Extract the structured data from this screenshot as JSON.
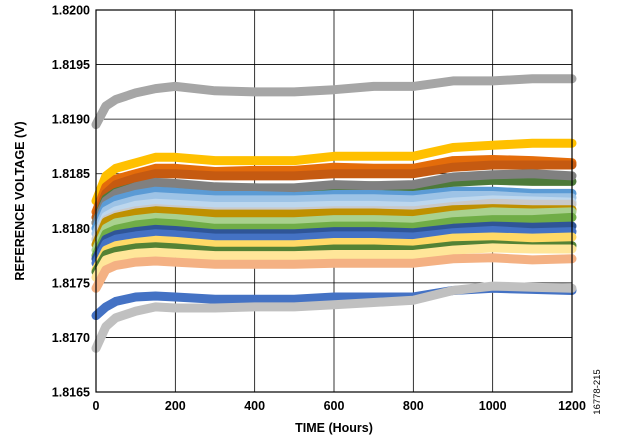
{
  "chart_data": {
    "type": "line",
    "title": "",
    "xlabel": "TIME (Hours)",
    "ylabel": "REFERENCE VOLTAGE (V)",
    "xlim": [
      0,
      1200
    ],
    "ylim": [
      1.8165,
      1.82
    ],
    "x_ticks": [
      "0",
      "200",
      "400",
      "600",
      "800",
      "1000",
      "1200"
    ],
    "y_ticks": [
      "1.8165",
      "1.8170",
      "1.8175",
      "1.8180",
      "1.8185",
      "1.8190",
      "1.8195",
      "1.8200"
    ],
    "grid": true,
    "legend": "none",
    "x": [
      0,
      25,
      50,
      100,
      150,
      200,
      300,
      400,
      500,
      600,
      700,
      800,
      900,
      1000,
      1100,
      1200
    ],
    "series": [
      {
        "color": "#A6A6A6",
        "values": [
          1.81895,
          1.81912,
          1.81918,
          1.81924,
          1.81928,
          1.8193,
          1.81926,
          1.81925,
          1.81925,
          1.81927,
          1.8193,
          1.8193,
          1.81935,
          1.81935,
          1.81937,
          1.81937
        ]
      },
      {
        "color": "#FFC000",
        "values": [
          1.81825,
          1.81848,
          1.81855,
          1.8186,
          1.81865,
          1.81865,
          1.81862,
          1.81862,
          1.81862,
          1.81866,
          1.81866,
          1.81866,
          1.81874,
          1.81876,
          1.81878,
          1.81878
        ]
      },
      {
        "color": "#E46C0A",
        "values": [
          1.81815,
          1.81838,
          1.81845,
          1.8185,
          1.81855,
          1.81855,
          1.81852,
          1.81853,
          1.81853,
          1.81856,
          1.81855,
          1.81855,
          1.81862,
          1.81863,
          1.81862,
          1.8186
        ]
      },
      {
        "color": "#C55A11",
        "values": [
          1.8181,
          1.81832,
          1.8184,
          1.81846,
          1.8185,
          1.8185,
          1.81848,
          1.81848,
          1.81848,
          1.8185,
          1.8185,
          1.8185,
          1.81856,
          1.81858,
          1.81858,
          1.81858
        ]
      },
      {
        "color": "#4D7A3A",
        "values": [
          1.81805,
          1.81827,
          1.81833,
          1.81838,
          1.81841,
          1.8184,
          1.81837,
          1.81837,
          1.81836,
          1.81838,
          1.81839,
          1.81838,
          1.81842,
          1.81844,
          1.81843,
          1.81843
        ]
      },
      {
        "color": "#808080",
        "values": [
          1.81805,
          1.81825,
          1.81832,
          1.81838,
          1.81842,
          1.81841,
          1.81838,
          1.81837,
          1.81837,
          1.8184,
          1.81839,
          1.8184,
          1.81847,
          1.81849,
          1.8185,
          1.81848
        ]
      },
      {
        "color": "#5B9BD5",
        "values": [
          1.818,
          1.81821,
          1.81826,
          1.81831,
          1.81834,
          1.81833,
          1.8183,
          1.8183,
          1.81829,
          1.81831,
          1.81831,
          1.8183,
          1.81834,
          1.81834,
          1.81832,
          1.81832
        ]
      },
      {
        "color": "#9DC3E6",
        "values": [
          1.81795,
          1.81816,
          1.81821,
          1.81826,
          1.81829,
          1.81828,
          1.81826,
          1.81826,
          1.81826,
          1.81827,
          1.81827,
          1.81826,
          1.8183,
          1.8183,
          1.81828,
          1.81828
        ]
      },
      {
        "color": "#BDD7EE",
        "values": [
          1.8179,
          1.81811,
          1.81816,
          1.81821,
          1.81823,
          1.81822,
          1.8182,
          1.8182,
          1.8182,
          1.81821,
          1.81821,
          1.8182,
          1.81824,
          1.81826,
          1.81825,
          1.81824
        ]
      },
      {
        "color": "#C9C9C9",
        "values": [
          1.8179,
          1.81808,
          1.81812,
          1.81816,
          1.81818,
          1.81817,
          1.81815,
          1.81815,
          1.81815,
          1.81816,
          1.81816,
          1.81816,
          1.8182,
          1.81823,
          1.81822,
          1.81822
        ]
      },
      {
        "color": "#BF9000",
        "values": [
          1.81785,
          1.81806,
          1.8181,
          1.81814,
          1.81816,
          1.81815,
          1.81813,
          1.81813,
          1.81813,
          1.81814,
          1.81814,
          1.81813,
          1.81817,
          1.81818,
          1.81817,
          1.81817
        ]
      },
      {
        "color": "#A9D18E",
        "values": [
          1.8178,
          1.818,
          1.81805,
          1.81808,
          1.8181,
          1.81809,
          1.81806,
          1.81806,
          1.81806,
          1.81808,
          1.81808,
          1.81807,
          1.81812,
          1.81815,
          1.81814,
          1.81815
        ]
      },
      {
        "color": "#70AD47",
        "values": [
          1.81775,
          1.81795,
          1.81799,
          1.81803,
          1.81805,
          1.81804,
          1.818,
          1.818,
          1.818,
          1.81802,
          1.81802,
          1.81801,
          1.81806,
          1.81808,
          1.81808,
          1.8181
        ]
      },
      {
        "color": "#2F5597",
        "values": [
          1.81772,
          1.8179,
          1.81794,
          1.81797,
          1.81799,
          1.81798,
          1.81795,
          1.81795,
          1.81795,
          1.81797,
          1.81797,
          1.81796,
          1.818,
          1.81802,
          1.81801,
          1.81802
        ]
      },
      {
        "color": "#4472C4",
        "values": [
          1.81768,
          1.81786,
          1.8179,
          1.81793,
          1.81795,
          1.81794,
          1.81791,
          1.81791,
          1.81791,
          1.81793,
          1.81793,
          1.81792,
          1.81796,
          1.81798,
          1.81796,
          1.81797
        ]
      },
      {
        "color": "#FFD966",
        "values": [
          1.81762,
          1.8178,
          1.81784,
          1.81787,
          1.81789,
          1.81788,
          1.81785,
          1.81785,
          1.81785,
          1.81787,
          1.81787,
          1.81786,
          1.81791,
          1.81792,
          1.81791,
          1.81792
        ]
      },
      {
        "color": "#548235",
        "values": [
          1.8176,
          1.81776,
          1.81779,
          1.81782,
          1.81783,
          1.81782,
          1.81779,
          1.81779,
          1.81779,
          1.81781,
          1.81781,
          1.8178,
          1.81784,
          1.81785,
          1.81783,
          1.81784
        ]
      },
      {
        "color": "#FFE699",
        "values": [
          1.81755,
          1.81771,
          1.81774,
          1.81777,
          1.81778,
          1.81777,
          1.81775,
          1.81775,
          1.81775,
          1.81776,
          1.81776,
          1.81776,
          1.8178,
          1.81782,
          1.81781,
          1.81781
        ]
      },
      {
        "color": "#F4B183",
        "values": [
          1.81745,
          1.81762,
          1.81766,
          1.81769,
          1.8177,
          1.81769,
          1.81767,
          1.81767,
          1.81767,
          1.81768,
          1.81768,
          1.81768,
          1.81772,
          1.81773,
          1.81771,
          1.81772
        ]
      },
      {
        "color": "#4472C4",
        "values": [
          1.8172,
          1.81728,
          1.81733,
          1.81737,
          1.81738,
          1.81737,
          1.81735,
          1.81735,
          1.81735,
          1.81737,
          1.81737,
          1.81737,
          1.81743,
          1.81745,
          1.81744,
          1.81743
        ]
      },
      {
        "color": "#C0C0C0",
        "values": [
          1.8169,
          1.8171,
          1.81718,
          1.81724,
          1.81728,
          1.81727,
          1.81727,
          1.81728,
          1.81728,
          1.8173,
          1.81732,
          1.81734,
          1.81743,
          1.81747,
          1.81746,
          1.81745
        ]
      }
    ]
  },
  "figure_id": "16778-215"
}
